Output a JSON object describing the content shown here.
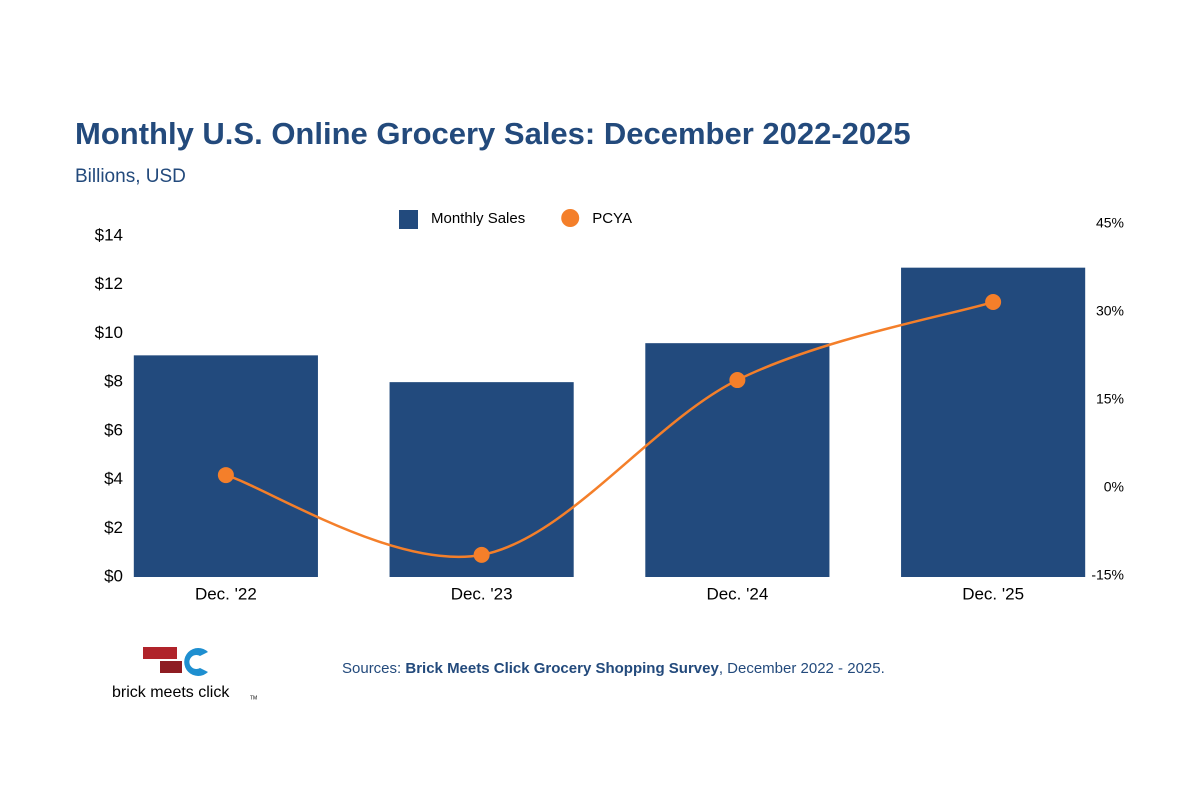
{
  "chart_data": {
    "type": "bar",
    "title": "Monthly U.S. Online Grocery Sales: December 2022-2025",
    "subtitle": "Billions, USD",
    "categories": [
      "Dec. '22",
      "Dec. '23",
      "Dec. '24",
      "Dec. '25"
    ],
    "series": [
      {
        "name": "Monthly Sales",
        "type": "bar",
        "color": "#224a7d",
        "values": [
          9.1,
          8.0,
          9.6,
          12.7
        ]
      },
      {
        "name": "PCYA",
        "type": "line",
        "axis": "y2",
        "color": "#f47f2a",
        "values": [
          2.2,
          -11.4,
          18.4,
          31.7
        ]
      }
    ],
    "ylim": [
      0,
      14
    ],
    "yticks": [
      {
        "value": 0,
        "label": "$0"
      },
      {
        "value": 2,
        "label": "$2"
      },
      {
        "value": 4,
        "label": "$4"
      },
      {
        "value": 6,
        "label": "$6"
      },
      {
        "value": 8,
        "label": "$8"
      },
      {
        "value": 10,
        "label": "$10"
      },
      {
        "value": 12,
        "label": "$12"
      },
      {
        "value": 14,
        "label": "$14"
      }
    ],
    "y2lim": [
      -15,
      45
    ],
    "y2ticks": [
      {
        "value": -15,
        "label": "-15%"
      },
      {
        "value": 0,
        "label": "0%"
      },
      {
        "value": 15,
        "label": "15%"
      },
      {
        "value": 30,
        "label": "30%"
      },
      {
        "value": 45,
        "label": "45%"
      }
    ],
    "grid": false,
    "legend": "top",
    "source": {
      "prefix": "Sources: ",
      "name": "Brick Meets Click Grocery Shopping Survey",
      "suffix": ", December 2022 - 2025."
    },
    "logo": {
      "text": "brick meets click",
      "mark": "TM"
    }
  }
}
